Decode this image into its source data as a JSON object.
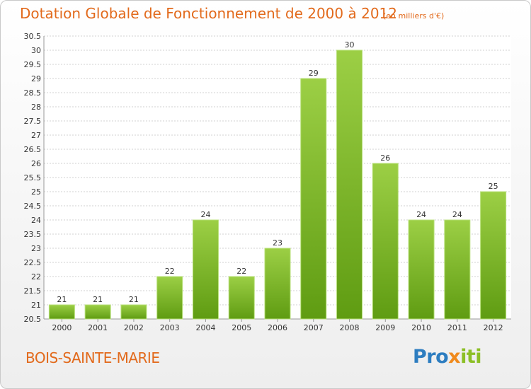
{
  "title": "Dotation Globale de Fonctionnement de 2000 à 2012",
  "unit_note": "(en milliers d'€)",
  "commune": "BOIS-SAINTE-MARIE",
  "logo": {
    "part1": "Pro",
    "part2": "x",
    "part3": "iti"
  },
  "colors": {
    "title": "#e26a1c",
    "bar_light": "#9ccf45",
    "bar_dark": "#5f9c12",
    "grid": "#d0d0d0"
  },
  "chart_data": {
    "type": "bar",
    "title": "Dotation Globale de Fonctionnement de 2000 à 2012",
    "categories": [
      "2000",
      "2001",
      "2002",
      "2003",
      "2004",
      "2005",
      "2006",
      "2007",
      "2008",
      "2009",
      "2010",
      "2011",
      "2012"
    ],
    "values": [
      21,
      21,
      21,
      22,
      24,
      22,
      23,
      29,
      30,
      26,
      24,
      24,
      25
    ],
    "ylim": [
      20.5,
      30.5
    ],
    "yticks": [
      "20.5",
      "21",
      "21.5",
      "22",
      "22.5",
      "23",
      "23.5",
      "24",
      "24.5",
      "25",
      "25.5",
      "26",
      "26.5",
      "27",
      "27.5",
      "28",
      "28.5",
      "29",
      "29.5",
      "30",
      "30.5"
    ],
    "grid": true,
    "xlabel": "",
    "ylabel": ""
  }
}
